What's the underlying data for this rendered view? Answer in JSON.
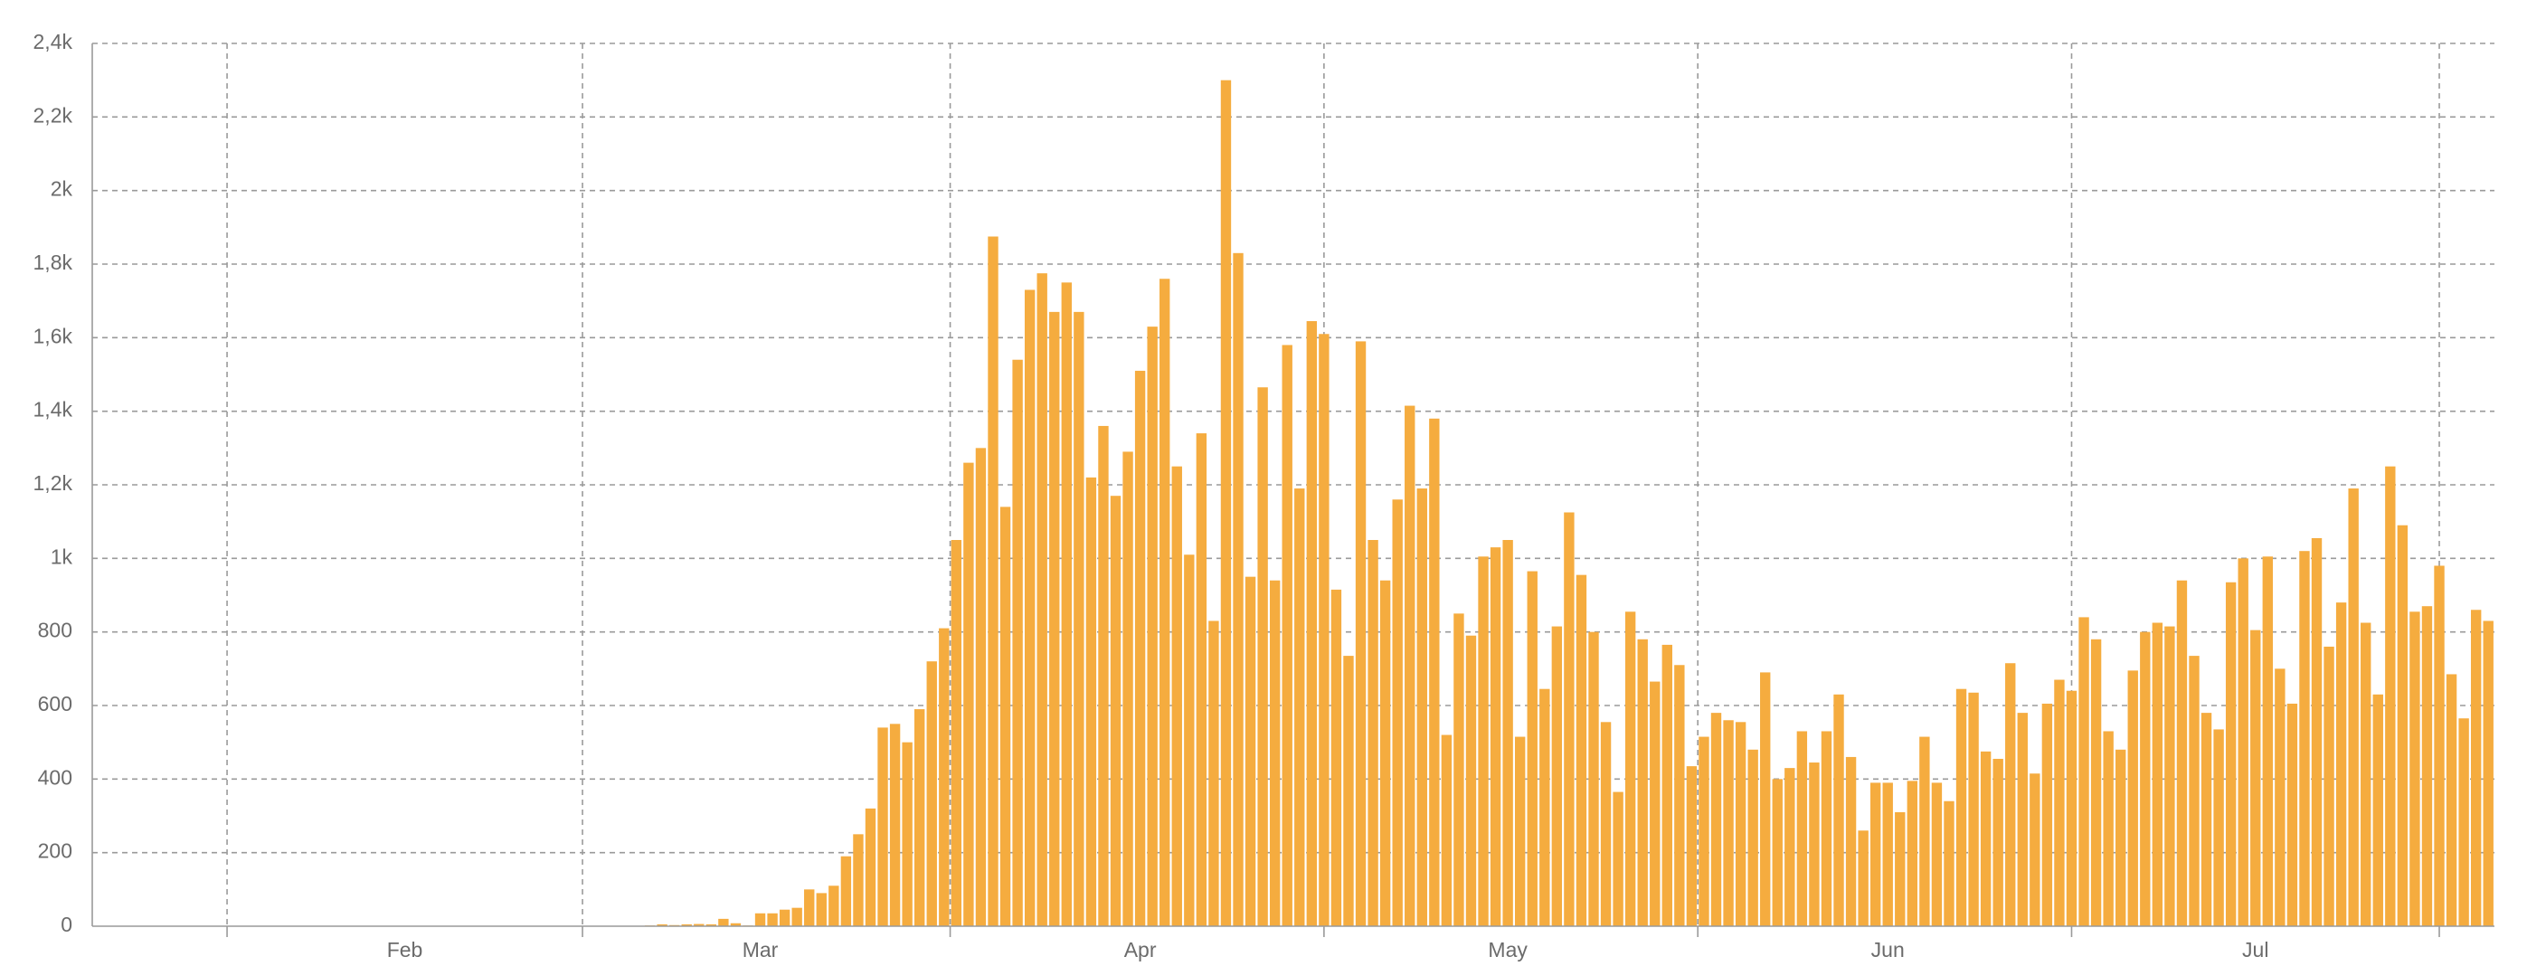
{
  "chart_data": {
    "type": "bar",
    "color": "#f5ac3f",
    "grid": true,
    "categories": [
      null,
      null,
      null,
      null,
      null,
      null,
      null,
      null,
      null,
      null,
      null,
      null,
      null,
      null,
      null,
      null,
      null,
      null,
      null,
      null,
      null,
      null,
      null,
      null,
      null,
      "Feb",
      null,
      null,
      null,
      null,
      null,
      null,
      null,
      null,
      null,
      null,
      null,
      null,
      null,
      null,
      null,
      null,
      null,
      null,
      null,
      null,
      null,
      null,
      null,
      null,
      null,
      null,
      null,
      null,
      "Mar",
      null,
      null,
      null,
      null,
      null,
      null,
      null,
      null,
      null,
      null,
      null,
      null,
      null,
      null,
      null,
      null,
      null,
      null,
      null,
      null,
      null,
      null,
      null,
      null,
      null,
      null,
      null,
      null,
      null,
      null,
      "Apr",
      null,
      null,
      null,
      null,
      null,
      null,
      null,
      null,
      null,
      null,
      null,
      null,
      null,
      null,
      null,
      null,
      null,
      null,
      null,
      null,
      null,
      null,
      null,
      null,
      null,
      null,
      null,
      null,
      null,
      "May",
      null,
      null,
      null,
      null,
      null,
      null,
      null,
      null,
      null,
      null,
      null,
      null,
      null,
      null,
      null,
      null,
      null,
      null,
      null,
      null,
      null,
      null,
      null,
      null,
      null,
      null,
      null,
      null,
      null,
      null,
      "Jun",
      null,
      null,
      null,
      null,
      null,
      null,
      null,
      null,
      null,
      null,
      null,
      null,
      null,
      null,
      null,
      null,
      null,
      null,
      null,
      null,
      null,
      null,
      null,
      null,
      null,
      null,
      null,
      null,
      null,
      "Jul",
      null,
      null,
      null,
      null,
      null,
      null,
      null,
      null,
      null,
      null,
      null,
      null,
      null,
      null,
      null,
      null,
      null,
      null,
      null
    ],
    "values": [
      0,
      0,
      0,
      0,
      0,
      0,
      0,
      0,
      0,
      0,
      0,
      0,
      0,
      0,
      0,
      0,
      0,
      0,
      0,
      0,
      0,
      0,
      0,
      0,
      0,
      0,
      0,
      0,
      0,
      0,
      0,
      0,
      0,
      0,
      0,
      0,
      0,
      0,
      0,
      0,
      0,
      0,
      0,
      0,
      0,
      2,
      5,
      3,
      5,
      6,
      5,
      20,
      8,
      2,
      35,
      35,
      45,
      50,
      100,
      90,
      110,
      190,
      250,
      320,
      540,
      550,
      500,
      590,
      720,
      810,
      1050,
      1260,
      1300,
      1875,
      1140,
      1540,
      1730,
      1775,
      1670,
      1750,
      1670,
      1220,
      1360,
      1170,
      1290,
      1510,
      1630,
      1760,
      1250,
      1010,
      1340,
      830,
      2300,
      1830,
      950,
      1465,
      940,
      1580,
      1190,
      1645,
      1610,
      915,
      735,
      1590,
      1050,
      940,
      1160,
      1415,
      1190,
      1380,
      520,
      850,
      790,
      1005,
      1030,
      1050,
      515,
      965,
      645,
      815,
      1125,
      955,
      800,
      555,
      365,
      855,
      780,
      665,
      765,
      710,
      435,
      515,
      580,
      560,
      555,
      480,
      690,
      400,
      430,
      530,
      445,
      530,
      630,
      460,
      260,
      390,
      390,
      310,
      395,
      515,
      390,
      340,
      645,
      635,
      475,
      455,
      715,
      580,
      415,
      605,
      670,
      640,
      840,
      780,
      530,
      480,
      695,
      800,
      825,
      815,
      940,
      735,
      580,
      535,
      935,
      1000,
      805,
      1005,
      700,
      605,
      1020,
      1055,
      760,
      880,
      1190,
      825,
      630,
      1250,
      1090,
      855,
      870,
      980,
      685,
      565,
      860,
      830
    ],
    "ylim": [
      0,
      2400
    ],
    "yticks": [
      0,
      200,
      400,
      600,
      800,
      {
        "value": 1000,
        "label": "1k"
      },
      {
        "value": 1200,
        "label": "1,2k"
      },
      {
        "value": 1400,
        "label": "1,4k"
      },
      {
        "value": 1600,
        "label": "1,6k"
      },
      {
        "value": 1800,
        "label": "1,8k"
      },
      {
        "value": 2000,
        "label": "2k"
      },
      {
        "value": 2200,
        "label": "2,2k"
      },
      {
        "value": 2400,
        "label": "2,4k"
      }
    ]
  }
}
